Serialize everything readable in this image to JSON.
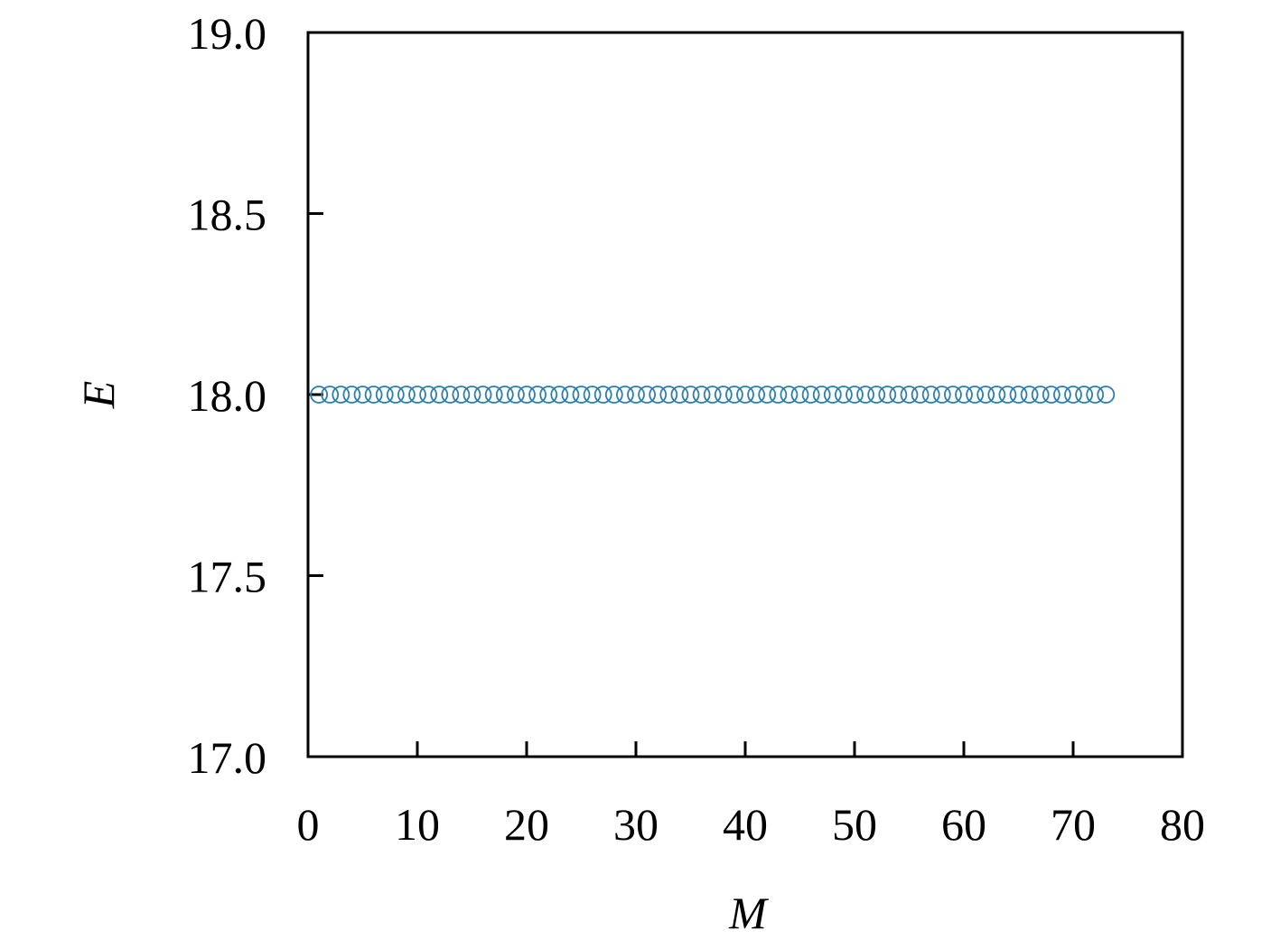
{
  "chart_data": {
    "type": "scatter",
    "xlabel": "M",
    "ylabel": "E",
    "x": [
      1,
      2,
      3,
      4,
      5,
      6,
      7,
      8,
      9,
      10,
      11,
      12,
      13,
      14,
      15,
      16,
      17,
      18,
      19,
      20,
      21,
      22,
      23,
      24,
      25,
      26,
      27,
      28,
      29,
      30,
      31,
      32,
      33,
      34,
      35,
      36,
      37,
      38,
      39,
      40,
      41,
      42,
      43,
      44,
      45,
      46,
      47,
      48,
      49,
      50,
      51,
      52,
      53,
      54,
      55,
      56,
      57,
      58,
      59,
      60,
      61,
      62,
      63,
      64,
      65,
      66,
      67,
      68,
      69,
      70,
      71,
      72,
      73
    ],
    "series": [
      {
        "color": "#2a7fb0",
        "values": [
          18,
          18,
          18,
          18,
          18,
          18,
          18,
          18,
          18,
          18,
          18,
          18,
          18,
          18,
          18,
          18,
          18,
          18,
          18,
          18,
          18,
          18,
          18,
          18,
          18,
          18,
          18,
          18,
          18,
          18,
          18,
          18,
          18,
          18,
          18,
          18,
          18,
          18,
          18,
          18,
          18,
          18,
          18,
          18,
          18,
          18,
          18,
          18,
          18,
          18,
          18,
          18,
          18,
          18,
          18,
          18,
          18,
          18,
          18,
          18,
          18,
          18,
          18,
          18,
          18,
          18,
          18,
          18,
          18,
          18,
          18,
          18,
          18
        ]
      }
    ],
    "xlim": [
      0,
      80
    ],
    "xticks": [
      0,
      10,
      20,
      30,
      40,
      50,
      60,
      70,
      80
    ],
    "ylim": [
      17,
      19
    ],
    "yticks": [
      {
        "value": 17,
        "label": "17.0"
      },
      17.5,
      {
        "value": 18,
        "label": "18.0"
      },
      18.5,
      {
        "value": 19,
        "label": "19.0"
      }
    ],
    "grid": false
  }
}
